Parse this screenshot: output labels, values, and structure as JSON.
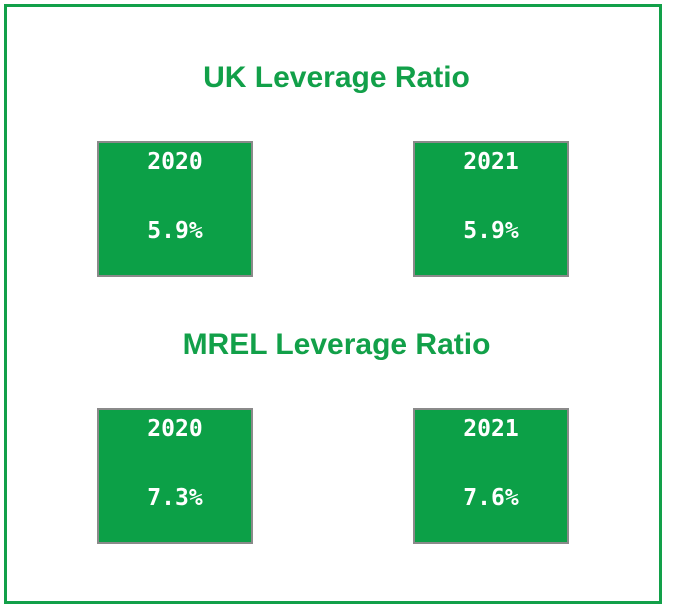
{
  "sections": [
    {
      "title": "UK Leverage Ratio",
      "tiles": [
        {
          "year": "2020",
          "value": "5.9%"
        },
        {
          "year": "2021",
          "value": "5.9%"
        }
      ]
    },
    {
      "title": "MREL Leverage Ratio",
      "tiles": [
        {
          "year": "2020",
          "value": "7.3%"
        },
        {
          "year": "2021",
          "value": "7.6%"
        }
      ]
    }
  ]
}
